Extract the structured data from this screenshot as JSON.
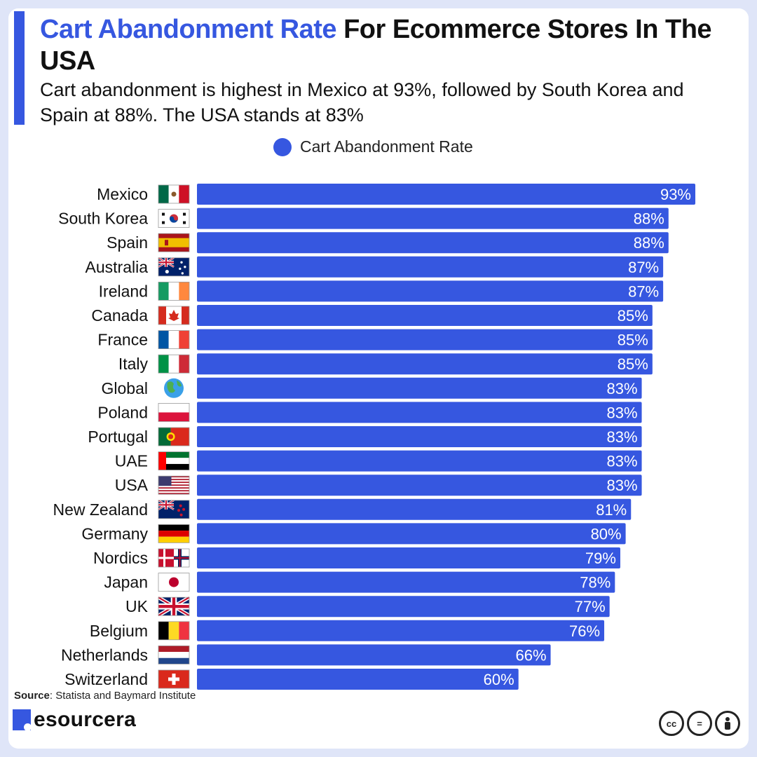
{
  "header": {
    "title_highlight": "Cart Abandonment Rate",
    "title_rest": " For Ecommerce Stores In The USA",
    "subtitle": "Cart abandonment is highest in Mexico at 93%, followed by South Korea and Spain at 88%. The USA stands at 83%"
  },
  "legend": {
    "label": "Cart Abandonment Rate"
  },
  "colors": {
    "bar": "#3657e0",
    "accent": "#3657e0",
    "text": "#111111"
  },
  "chart_data": {
    "type": "bar",
    "orientation": "horizontal",
    "title": "Cart Abandonment Rate For Ecommerce Stores In The USA",
    "categories": [
      "Mexico",
      "South Korea",
      "Spain",
      "Australia",
      "Ireland",
      "Canada",
      "France",
      "Italy",
      "Global",
      "Poland",
      "Portugal",
      "UAE",
      "USA",
      "New Zealand",
      "Germany",
      "Nordics",
      "Japan",
      "UK",
      "Belgium",
      "Netherlands",
      "Switzerland"
    ],
    "flag_icons": [
      "mexico-flag-icon",
      "south-korea-flag-icon",
      "spain-flag-icon",
      "australia-flag-icon",
      "ireland-flag-icon",
      "canada-flag-icon",
      "france-flag-icon",
      "italy-flag-icon",
      "globe-icon",
      "poland-flag-icon",
      "portugal-flag-icon",
      "uae-flag-icon",
      "usa-flag-icon",
      "new-zealand-flag-icon",
      "germany-flag-icon",
      "nordics-flag-icon",
      "japan-flag-icon",
      "uk-flag-icon",
      "belgium-flag-icon",
      "netherlands-flag-icon",
      "switzerland-flag-icon"
    ],
    "series": [
      {
        "name": "Cart Abandonment Rate",
        "values": [
          93,
          88,
          88,
          87,
          87,
          85,
          85,
          85,
          83,
          83,
          83,
          83,
          83,
          81,
          80,
          79,
          78,
          77,
          76,
          66,
          60
        ]
      }
    ],
    "value_labels": [
      "93%",
      "88%",
      "88%",
      "87%",
      "87%",
      "85%",
      "85%",
      "85%",
      "83%",
      "83%",
      "83%",
      "83%",
      "83%",
      "81%",
      "80%",
      "79%",
      "78%",
      "77%",
      "76%",
      "66%",
      "60%"
    ],
    "xlim": [
      0,
      93
    ],
    "grid": false,
    "legend_position": "top-center"
  },
  "footer": {
    "source_label": "Source",
    "source_text": ": Statista and Baymard Institute",
    "brand": "esourcera",
    "license_icons": [
      "cc-icon",
      "equals-icon",
      "person-icon"
    ]
  }
}
